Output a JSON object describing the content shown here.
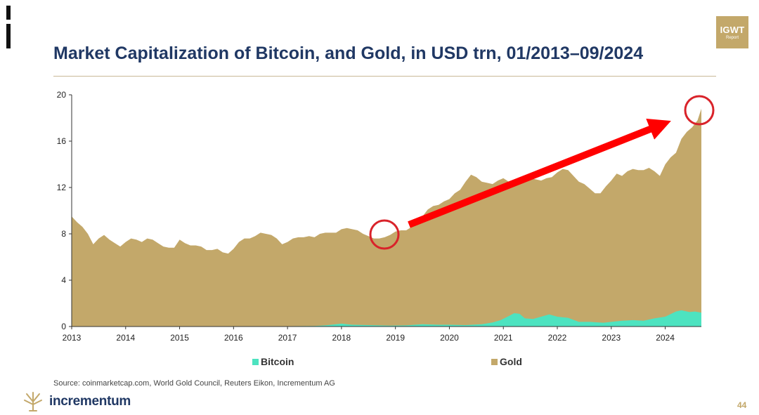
{
  "header": {
    "title": "Market Capitalization of Bitcoin, and Gold, in USD trn, 01/2013–09/2024",
    "badge_line1": "IGWT",
    "badge_line2": "Report"
  },
  "footer": {
    "source": "Source: coinmarketcap.com, World Gold Council, Reuters Eikon, Incrementum AG",
    "logo_text": "incrementum",
    "page_number": "44"
  },
  "colors": {
    "gold": "#c3a86a",
    "bitcoin": "#4de3c0",
    "arrow": "#ff0000",
    "title": "#203864"
  },
  "chart_data": {
    "type": "area",
    "stacked": false,
    "xlim": [
      2013.0,
      2024.67
    ],
    "ylim": [
      0,
      20
    ],
    "yticks": [
      0,
      4,
      8,
      12,
      16,
      20
    ],
    "xticks": [
      "2013",
      "2014",
      "2015",
      "2016",
      "2017",
      "2018",
      "2019",
      "2020",
      "2021",
      "2022",
      "2023",
      "2024"
    ],
    "legend_position": "bottom",
    "series": [
      {
        "name": "Bitcoin",
        "color": "#4de3c0",
        "x": [
          2013.0,
          2016.5,
          2017.5,
          2017.7,
          2017.9,
          2018.0,
          2018.2,
          2018.5,
          2018.9,
          2019.2,
          2019.5,
          2019.8,
          2020.0,
          2020.3,
          2020.6,
          2020.8,
          2020.95,
          2021.1,
          2021.2,
          2021.3,
          2021.4,
          2021.55,
          2021.7,
          2021.85,
          2022.0,
          2022.2,
          2022.4,
          2022.6,
          2022.85,
          2023.0,
          2023.2,
          2023.4,
          2023.6,
          2023.8,
          2024.0,
          2024.2,
          2024.3,
          2024.45,
          2024.55,
          2024.67
        ],
        "values": [
          0.0,
          0.01,
          0.05,
          0.1,
          0.2,
          0.25,
          0.15,
          0.12,
          0.07,
          0.1,
          0.2,
          0.15,
          0.15,
          0.12,
          0.2,
          0.35,
          0.55,
          0.9,
          1.15,
          1.1,
          0.7,
          0.65,
          0.85,
          1.05,
          0.85,
          0.75,
          0.4,
          0.4,
          0.33,
          0.4,
          0.5,
          0.55,
          0.5,
          0.7,
          0.85,
          1.3,
          1.4,
          1.25,
          1.3,
          1.2
        ]
      },
      {
        "name": "Gold",
        "color": "#c3a86a",
        "x": [
          2013.0,
          2013.1,
          2013.2,
          2013.3,
          2013.4,
          2013.5,
          2013.6,
          2013.7,
          2013.8,
          2013.9,
          2014.0,
          2014.1,
          2014.2,
          2014.3,
          2014.4,
          2014.5,
          2014.6,
          2014.7,
          2014.8,
          2014.9,
          2015.0,
          2015.1,
          2015.2,
          2015.3,
          2015.4,
          2015.5,
          2015.6,
          2015.7,
          2015.8,
          2015.9,
          2016.0,
          2016.1,
          2016.2,
          2016.3,
          2016.4,
          2016.5,
          2016.6,
          2016.7,
          2016.8,
          2016.9,
          2017.0,
          2017.1,
          2017.2,
          2017.3,
          2017.4,
          2017.5,
          2017.6,
          2017.7,
          2017.8,
          2017.9,
          2018.0,
          2018.1,
          2018.2,
          2018.3,
          2018.4,
          2018.5,
          2018.6,
          2018.7,
          2018.8,
          2018.9,
          2019.0,
          2019.1,
          2019.2,
          2019.3,
          2019.4,
          2019.5,
          2019.6,
          2019.7,
          2019.8,
          2019.9,
          2020.0,
          2020.1,
          2020.2,
          2020.3,
          2020.4,
          2020.5,
          2020.6,
          2020.7,
          2020.8,
          2020.9,
          2021.0,
          2021.1,
          2021.2,
          2021.3,
          2021.4,
          2021.5,
          2021.6,
          2021.7,
          2021.8,
          2021.9,
          2022.0,
          2022.1,
          2022.2,
          2022.3,
          2022.4,
          2022.5,
          2022.6,
          2022.7,
          2022.8,
          2022.9,
          2023.0,
          2023.1,
          2023.2,
          2023.3,
          2023.4,
          2023.5,
          2023.6,
          2023.7,
          2023.8,
          2023.9,
          2024.0,
          2024.1,
          2024.2,
          2024.3,
          2024.4,
          2024.5,
          2024.6,
          2024.67
        ],
        "values": [
          9.5,
          9.0,
          8.6,
          8.0,
          7.1,
          7.6,
          7.9,
          7.5,
          7.2,
          6.9,
          7.3,
          7.6,
          7.5,
          7.3,
          7.6,
          7.5,
          7.2,
          6.9,
          6.8,
          6.8,
          7.5,
          7.2,
          7.0,
          7.0,
          6.9,
          6.6,
          6.6,
          6.7,
          6.4,
          6.3,
          6.7,
          7.3,
          7.6,
          7.6,
          7.8,
          8.1,
          8.0,
          7.9,
          7.6,
          7.1,
          7.3,
          7.6,
          7.7,
          7.7,
          7.8,
          7.7,
          8.0,
          8.1,
          8.1,
          8.1,
          8.4,
          8.5,
          8.4,
          8.3,
          8.0,
          7.8,
          7.6,
          7.6,
          7.7,
          7.9,
          8.2,
          8.3,
          8.3,
          8.6,
          8.8,
          9.5,
          10.1,
          10.4,
          10.5,
          10.8,
          11.0,
          11.5,
          11.8,
          12.5,
          13.1,
          12.9,
          12.5,
          12.4,
          12.3,
          12.6,
          12.8,
          12.5,
          12.1,
          12.3,
          12.6,
          12.8,
          12.7,
          12.6,
          12.8,
          12.9,
          13.3,
          13.6,
          13.5,
          13.0,
          12.5,
          12.3,
          11.9,
          11.5,
          11.5,
          12.1,
          12.6,
          13.2,
          13.0,
          13.4,
          13.6,
          13.5,
          13.5,
          13.7,
          13.4,
          13.0,
          14.0,
          14.6,
          15.0,
          16.2,
          16.8,
          17.2,
          17.8,
          18.8
        ]
      }
    ]
  }
}
